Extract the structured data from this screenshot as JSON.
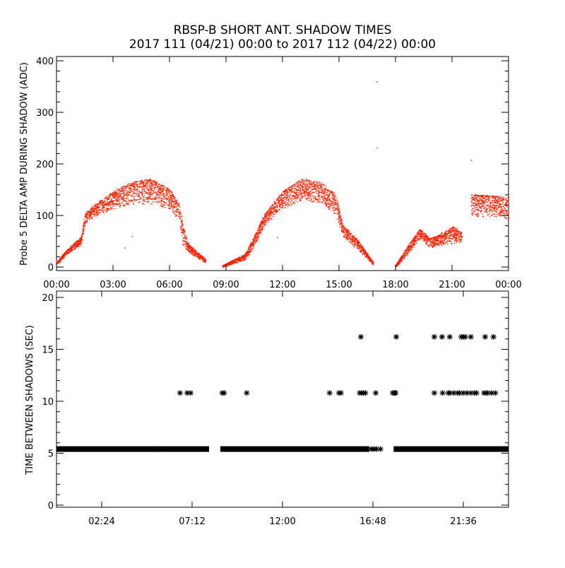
{
  "chart_data": [
    {
      "type": "scatter",
      "title": "RBSP-B SHORT ANT. SHADOW TIMES",
      "subtitle": "2017 111 (04/21) 00:00 to 2017 112 (04/22) 00:00",
      "xlabel": "",
      "ylabel": "Probe 5 DELTA AMP DURING SHADOW (ADC)",
      "xlim_hours": [
        0,
        24
      ],
      "ylim": [
        0,
        400
      ],
      "xticks": [
        "00:00",
        "03:00",
        "06:00",
        "09:00",
        "12:00",
        "15:00",
        "18:00",
        "21:00",
        "00:00"
      ],
      "yticks": [
        "0",
        "100",
        "200",
        "300",
        "400"
      ],
      "color": "#ff2000",
      "envelope_note": "dense points between low/high bands (hour, low, high)",
      "bands": [
        [
          [
            0,
            4,
            10
          ],
          [
            0.5,
            24,
            33
          ],
          [
            1.3,
            44,
            60
          ],
          [
            1.5,
            85,
            105
          ],
          [
            2,
            98,
            122
          ],
          [
            3,
            113,
            148
          ],
          [
            4,
            122,
            166
          ],
          [
            5,
            122,
            172
          ],
          [
            6,
            113,
            152
          ],
          [
            6.5,
            88,
            122
          ],
          [
            6.7,
            40,
            80
          ],
          [
            7,
            28,
            45
          ],
          [
            7.9,
            8,
            16
          ]
        ],
        [
          [
            8.8,
            0,
            4
          ],
          [
            10,
            14,
            26
          ],
          [
            10.5,
            40,
            62
          ],
          [
            11,
            80,
            102
          ],
          [
            12,
            113,
            148
          ],
          [
            13,
            128,
            172
          ],
          [
            14,
            124,
            166
          ],
          [
            14.8,
            100,
            142
          ],
          [
            15.2,
            58,
            82
          ],
          [
            16,
            33,
            52
          ],
          [
            16.8,
            4,
            10
          ]
        ],
        [
          [
            18,
            0,
            5
          ],
          [
            18.7,
            28,
            46
          ],
          [
            19.3,
            55,
            75
          ],
          [
            19.8,
            38,
            56
          ],
          [
            20.2,
            40,
            62
          ],
          [
            21,
            45,
            80
          ],
          [
            21.5,
            50,
            70
          ]
        ],
        [
          [
            22,
            98,
            142
          ],
          [
            23,
            98,
            140
          ],
          [
            24,
            94,
            136
          ]
        ]
      ],
      "outliers": [
        [
          17.0,
          360
        ],
        [
          17.0,
          232
        ],
        [
          22.0,
          208
        ],
        [
          4.0,
          60
        ],
        [
          3.6,
          38
        ],
        [
          11.7,
          58
        ]
      ]
    },
    {
      "type": "scatter",
      "title": "",
      "xlabel": "",
      "ylabel": "TIME BETWEEN SHADOWS (SEC)",
      "xlim_hours": [
        0,
        24
      ],
      "ylim": [
        0,
        20
      ],
      "xticks": [
        "02:24",
        "07:12",
        "12:00",
        "16:48",
        "21:36"
      ],
      "yticks": [
        "0",
        "5",
        "10",
        "15",
        "20"
      ],
      "marker": "asterisk",
      "baseline_value": 5.4,
      "baseline_ranges_hours": [
        [
          0,
          8.1
        ],
        [
          8.7,
          16.6
        ],
        [
          17.9,
          24
        ]
      ],
      "baseline_sparse_hours": [
        5.2,
        5.3,
        5.4,
        16.7,
        16.8,
        16.9,
        17.0,
        17.2
      ],
      "mid_value": 10.8,
      "mid_hours": [
        6.56,
        6.94,
        7.12,
        8.8,
        8.9,
        10.1,
        14.5,
        15.0,
        15.1,
        16.1,
        16.2,
        16.3,
        16.4,
        16.95,
        17.85,
        17.95,
        18.0,
        20.06,
        20.5,
        20.8,
        20.9,
        21.1,
        21.3,
        21.4,
        21.6,
        21.8,
        22.0,
        22.2,
        22.3,
        22.7,
        22.8,
        22.9,
        23.1,
        23.3
      ],
      "high_value": 16.2,
      "high_hours": [
        16.16,
        18.04,
        20.06,
        20.47,
        20.88,
        21.5,
        21.6,
        21.7,
        22.0,
        22.76,
        23.2
      ]
    }
  ]
}
